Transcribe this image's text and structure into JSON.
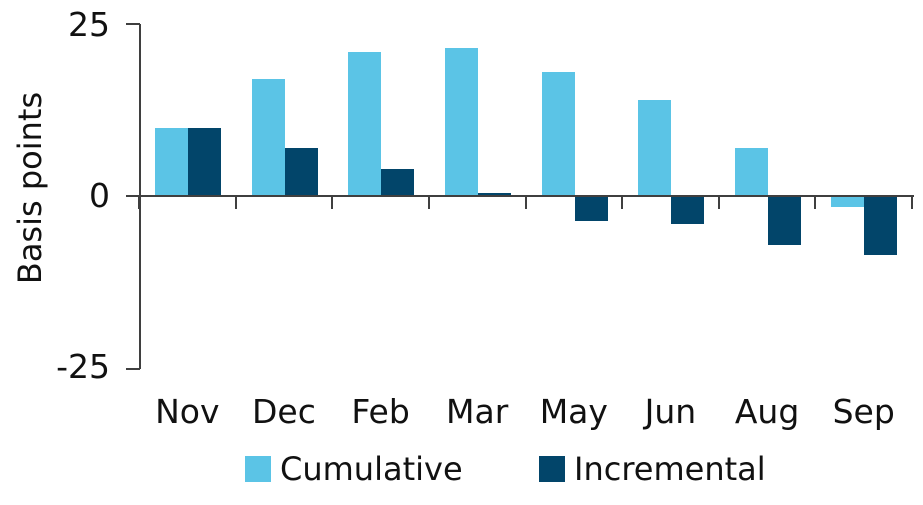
{
  "chart_data": {
    "type": "bar",
    "title": "",
    "xlabel": "",
    "ylabel": "Basis points",
    "categories": [
      "Nov",
      "Dec",
      "Feb",
      "Mar",
      "May",
      "Jun",
      "Aug",
      "Sep"
    ],
    "series": [
      {
        "name": "Cumulative",
        "color": "#5BC4E6",
        "values": [
          10,
          17,
          21,
          21.5,
          18,
          14,
          7,
          -1.5
        ]
      },
      {
        "name": "Incremental",
        "color": "#02456A",
        "values": [
          10,
          7,
          4,
          0.5,
          -3.5,
          -4,
          -7,
          -8.5
        ]
      }
    ],
    "ylim": [
      -25,
      25
    ],
    "yticks": [
      25,
      0,
      -25
    ],
    "ytick_labels": [
      "25",
      "0",
      "-25"
    ],
    "grid": false,
    "legend_position": "bottom"
  },
  "style": {
    "axis_color": "#3f3f3f",
    "text_color": "#111111",
    "background": "#ffffff"
  }
}
